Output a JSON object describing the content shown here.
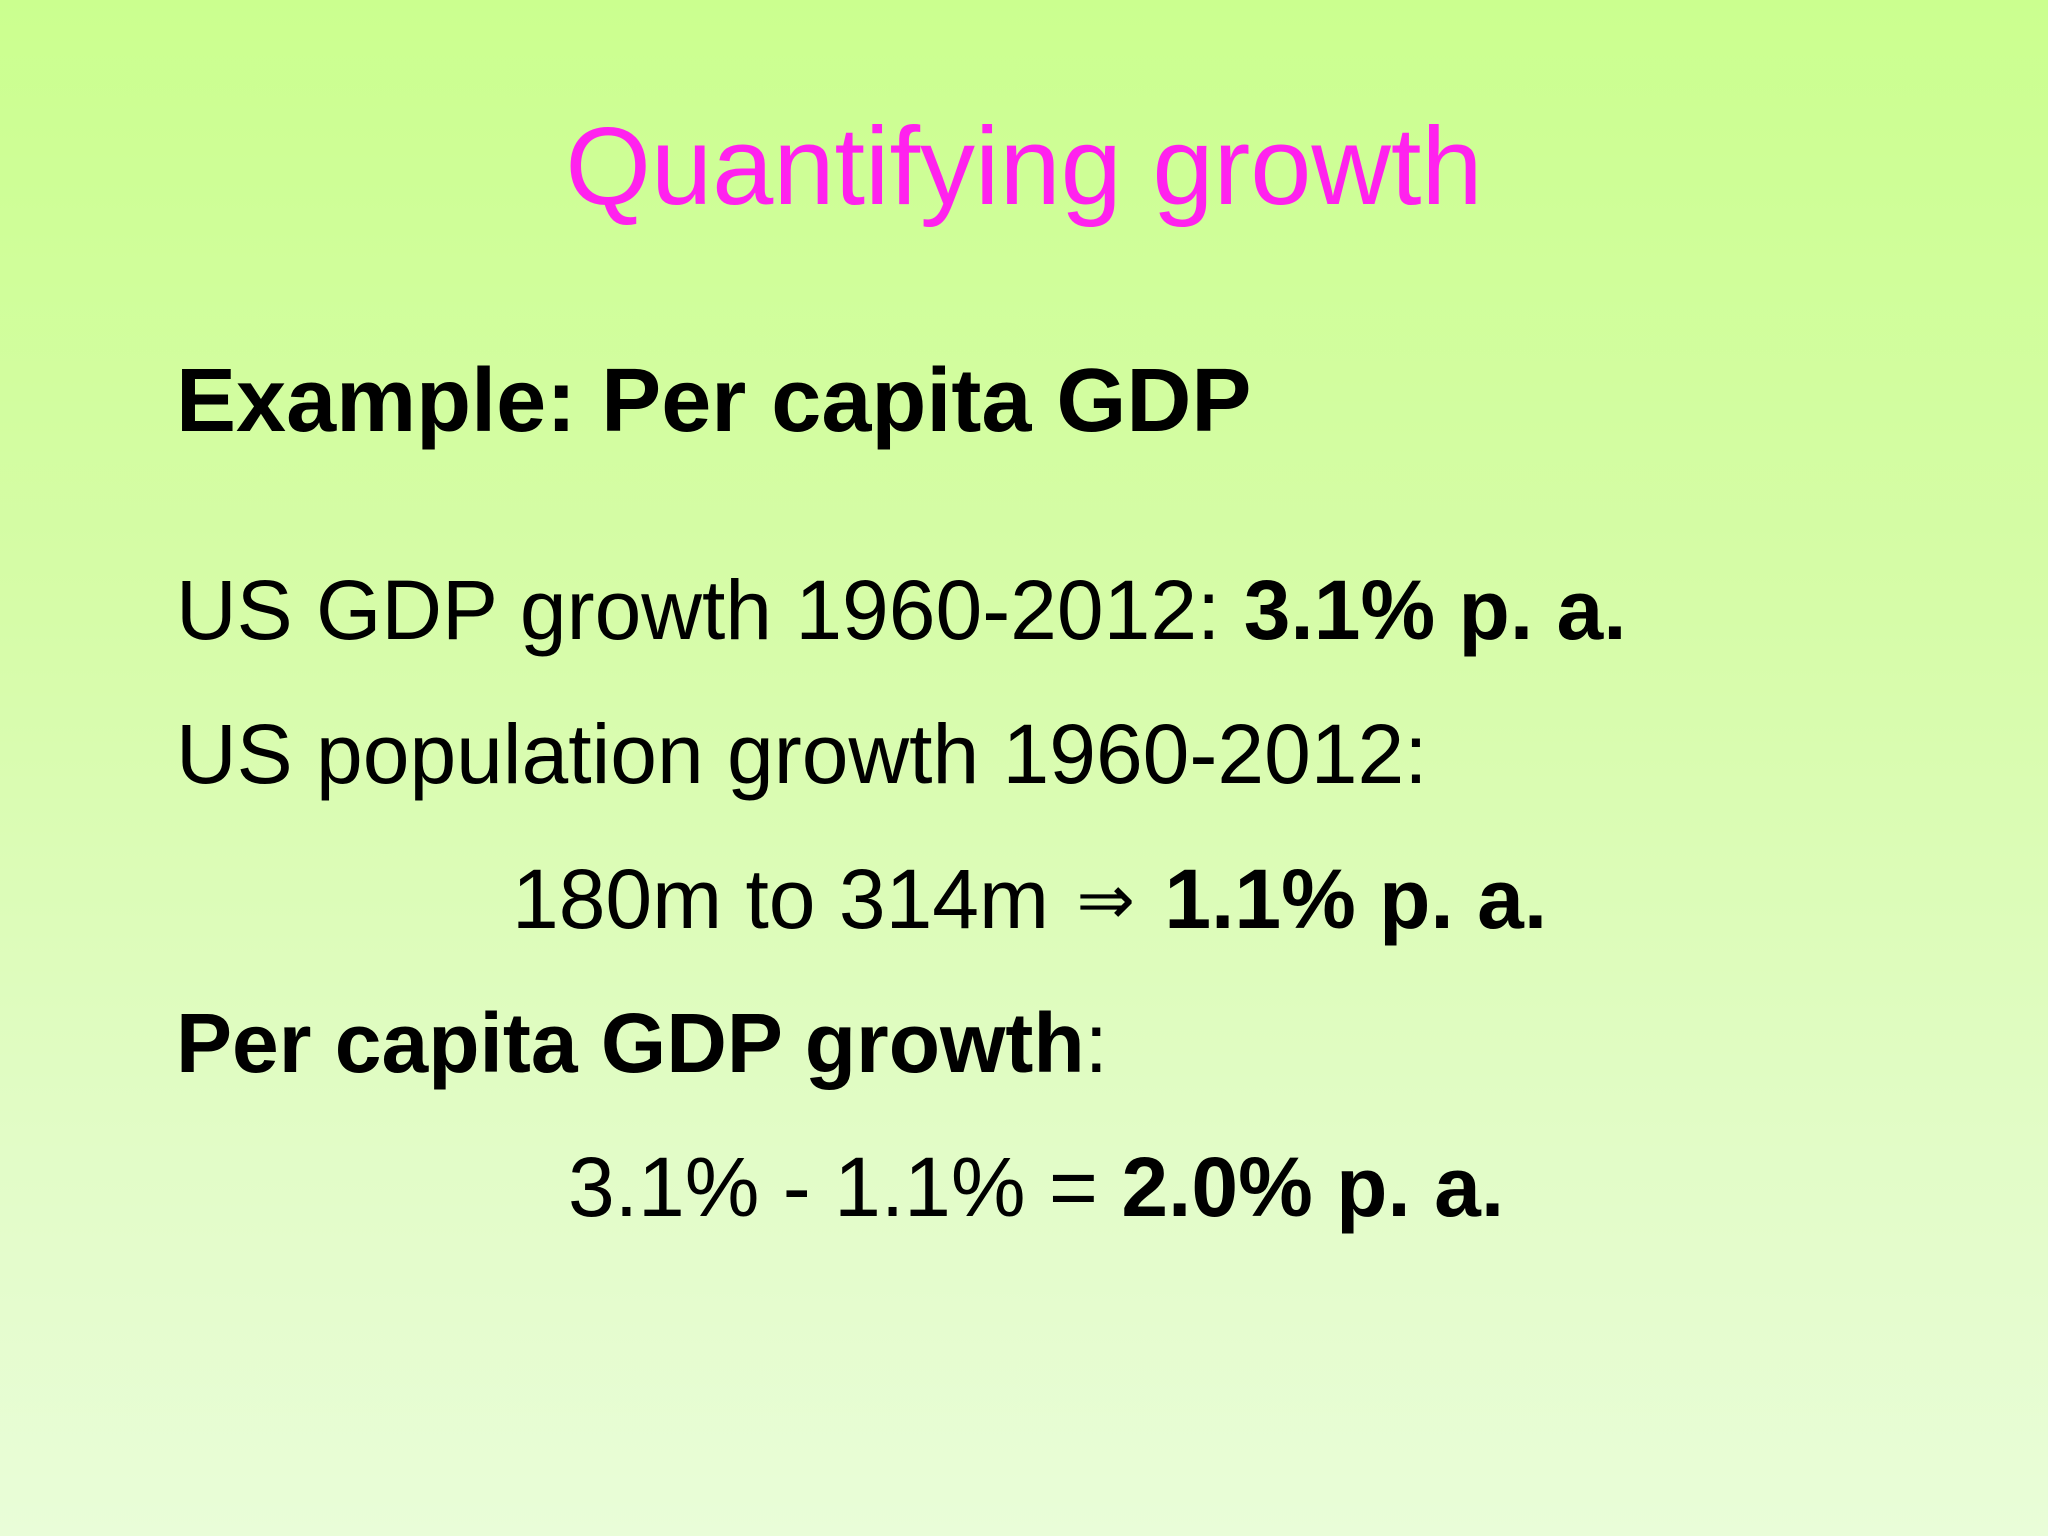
{
  "slide": {
    "title": "Quantifying growth",
    "heading": "Example: Per capita GDP",
    "line1": {
      "text": "US GDP growth 1960-2012: ",
      "emphasis": "3.1% p. a."
    },
    "line2": {
      "text": "US population growth 1960-2012:"
    },
    "line3": {
      "text": "180m to 314m ",
      "symbol": "⇒",
      "emphasis": " 1.1% p. a."
    },
    "line4": {
      "emphasis": "Per capita GDP growth",
      "text": ":"
    },
    "line5": {
      "text": "3.1% - 1.1% = ",
      "emphasis": "2.0% p. a."
    }
  },
  "colors": {
    "title": "#ff22ee",
    "text": "#000000",
    "background_top": "#cbff8f",
    "background_bottom": "#e9fdd8"
  }
}
